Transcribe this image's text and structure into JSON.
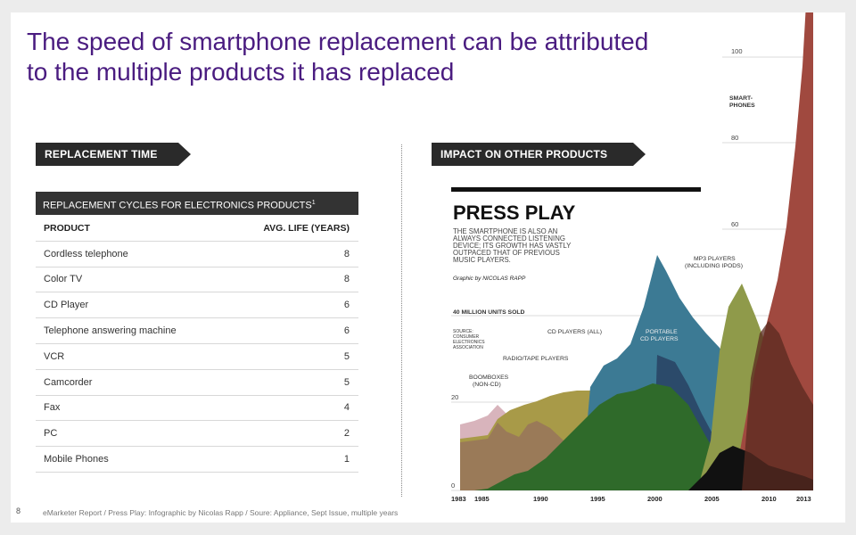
{
  "title": "The speed of smartphone replacement can be attributed to the multiple products it has replaced",
  "left_section_label": "REPLACEMENT TIME",
  "right_section_label": "IMPACT ON OTHER PRODUCTS",
  "table": {
    "caption": "REPLACEMENT CYCLES FOR ELECTRONICS PRODUCTS",
    "caption_sup": "1",
    "columns": [
      "PRODUCT",
      "AVG. LIFE (YEARS)"
    ],
    "rows": [
      {
        "product": "Cordless telephone",
        "life": "8"
      },
      {
        "product": "Color TV",
        "life": "8"
      },
      {
        "product": "CD Player",
        "life": "6"
      },
      {
        "product": "Telephone answering machine",
        "life": "6"
      },
      {
        "product": "VCR",
        "life": "5"
      },
      {
        "product": "Camcorder",
        "life": "5"
      },
      {
        "product": "Fax",
        "life": "4"
      },
      {
        "product": "PC",
        "life": "2"
      },
      {
        "product": "Mobile Phones",
        "life": "1"
      }
    ]
  },
  "infographic": {
    "title": "PRESS PLAY",
    "subtitle_lines": [
      "THE SMARTPHONE IS ALSO AN",
      "ALWAYS CONNECTED LISTENING",
      "DEVICE; ITS GROWTH HAS VASTLY",
      "OUTPACED THAT OF PREVIOUS",
      "MUSIC PLAYERS."
    ],
    "credit": "Graphic by NICOLAS RAPP",
    "units_label": "40 MILLION UNITS SOLD",
    "source_lines": [
      "SOURCE:",
      "CONSUMER",
      "ELECTRONICS",
      "ASSOCIATION"
    ],
    "y_ticks": [
      "100",
      "80",
      "60",
      "20",
      "0"
    ],
    "x_ticks": [
      "1983",
      "1985",
      "1990",
      "1995",
      "2000",
      "2005",
      "2010",
      "2013"
    ],
    "labels": {
      "smartphones": [
        "SMART-",
        "PHONES"
      ],
      "mp3": [
        "MP3 PLAYERS",
        "(INCLUDING IPODS)"
      ],
      "cd_players": "CD PLAYERS (ALL)",
      "portable_cd": [
        "PORTABLE",
        "CD PLAYERS"
      ],
      "radio_tape": "RADIO/TAPE PLAYERS",
      "boomboxes": [
        "BOOMBOXES",
        "(NON-CD)"
      ]
    },
    "colors": {
      "smartphones": "#a0493f",
      "mp3": "#8f9a4a",
      "cd_players": "#3c7a94",
      "portable_cd": "#2b4a6a",
      "radio_tape": "#9a8a40",
      "boomboxes": "#d8b4bc",
      "green": "#2f6a2a",
      "black": "#111111"
    }
  },
  "footer": {
    "page": "8",
    "text": "eMarketer Report  /  Press Play: Infographic by Nicolas Rapp  /  Soure: Appliance, Sept Issue, multiple years"
  }
}
